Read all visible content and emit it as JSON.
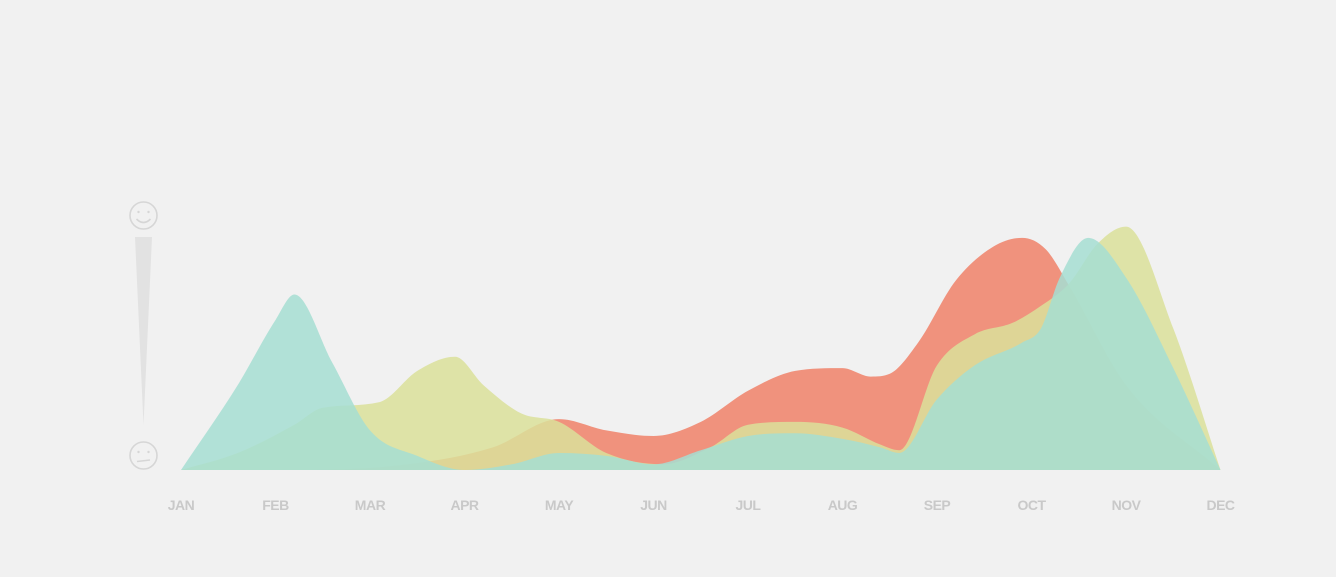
{
  "chart_data": {
    "type": "area",
    "categories": [
      "JAN",
      "FEB",
      "MAR",
      "APR",
      "MAY",
      "JUN",
      "JUL",
      "AUG",
      "SEP",
      "OCT",
      "NOV",
      "DEC"
    ],
    "ylim": [
      0,
      1
    ],
    "grid": false,
    "legend": "none",
    "y_axis": {
      "top_icon": "happy-face-icon",
      "bottom_icon": "neutral-face-icon"
    },
    "series": [
      {
        "color": "#f08a73",
        "x": [
          0,
          1.2,
          2.4,
          3.3,
          4.0,
          4.5,
          5.0,
          5.5,
          6.0,
          6.5,
          7.0,
          7.3,
          7.5,
          7.8,
          8.2,
          8.6,
          8.9,
          9.15,
          9.4,
          10.0,
          11.0
        ],
        "values": [
          0.0,
          0.0,
          0.02,
          0.08,
          0.18,
          0.14,
          0.12,
          0.17,
          0.28,
          0.35,
          0.36,
          0.33,
          0.34,
          0.45,
          0.67,
          0.79,
          0.82,
          0.78,
          0.65,
          0.3,
          0.0
        ]
      },
      {
        "color": "#dbe09a",
        "x": [
          0,
          0.6,
          1.2,
          1.5,
          2.1,
          2.5,
          2.9,
          3.2,
          3.6,
          4.0,
          4.5,
          5.1,
          5.6,
          6.0,
          6.5,
          7.0,
          7.4,
          7.6,
          8.0,
          8.4,
          8.8,
          9.1,
          9.4,
          9.7,
          10.0,
          10.5,
          11.0
        ],
        "values": [
          0.0,
          0.06,
          0.16,
          0.22,
          0.24,
          0.35,
          0.4,
          0.3,
          0.2,
          0.17,
          0.06,
          0.02,
          0.08,
          0.16,
          0.17,
          0.15,
          0.09,
          0.07,
          0.37,
          0.48,
          0.52,
          0.58,
          0.66,
          0.8,
          0.86,
          0.5,
          0.0
        ]
      },
      {
        "color": "#a6ded2",
        "x": [
          0,
          0.6,
          1.0,
          1.2,
          1.6,
          2.0,
          2.5,
          3.0,
          3.5,
          4.0,
          4.5,
          5.0,
          5.5,
          6.0,
          6.5,
          7.0,
          7.4,
          7.6,
          8.0,
          8.4,
          8.9,
          9.1,
          9.3,
          9.6,
          10.0,
          10.5,
          11.0
        ],
        "values": [
          0.0,
          0.3,
          0.53,
          0.62,
          0.38,
          0.14,
          0.05,
          0.0,
          0.02,
          0.06,
          0.05,
          0.02,
          0.07,
          0.12,
          0.13,
          0.11,
          0.08,
          0.06,
          0.25,
          0.37,
          0.45,
          0.5,
          0.68,
          0.82,
          0.68,
          0.36,
          0.0
        ]
      }
    ]
  }
}
